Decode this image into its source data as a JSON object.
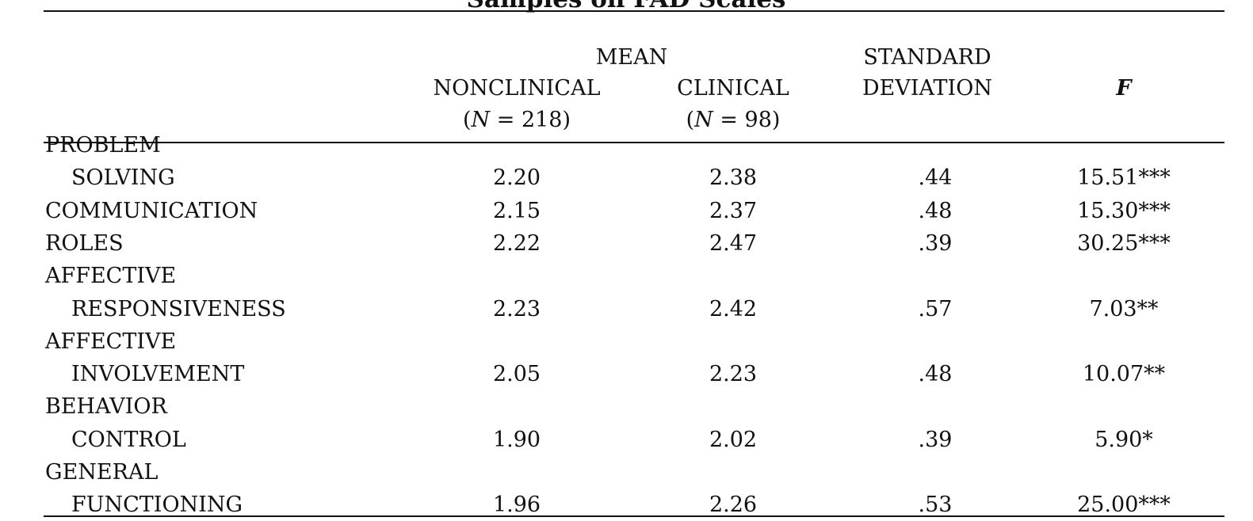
{
  "table": {
    "title": "Samples on FAD Scales",
    "header": {
      "mean_group": "MEAN",
      "nonclinical": "NONCLINICAL",
      "nonclinical_n": "(N = 218)",
      "clinical": "CLINICAL",
      "clinical_n": "(N = 98)",
      "sd_line1": "STANDARD",
      "sd_line2": "DEVIATION",
      "f": "F"
    },
    "rows": [
      {
        "label1": "PROBLEM",
        "label2": "SOLVING",
        "nonclinical": "2.20",
        "clinical": "2.38",
        "sd": ".44",
        "f": "15.51***"
      },
      {
        "label1": "COMMUNICATION",
        "label2": "",
        "nonclinical": "2.15",
        "clinical": "2.37",
        "sd": ".48",
        "f": "15.30***"
      },
      {
        "label1": "ROLES",
        "label2": "",
        "nonclinical": "2.22",
        "clinical": "2.47",
        "sd": ".39",
        "f": "30.25***"
      },
      {
        "label1": "AFFECTIVE",
        "label2": "RESPONSIVENESS",
        "nonclinical": "2.23",
        "clinical": "2.42",
        "sd": ".57",
        "f": "7.03**"
      },
      {
        "label1": "AFFECTIVE",
        "label2": "INVOLVEMENT",
        "nonclinical": "2.05",
        "clinical": "2.23",
        "sd": ".48",
        "f": "10.07**"
      },
      {
        "label1": "BEHAVIOR",
        "label2": "CONTROL",
        "nonclinical": "1.90",
        "clinical": "2.02",
        "sd": ".39",
        "f": "5.90*"
      },
      {
        "label1": "GENERAL",
        "label2": "FUNCTIONING",
        "nonclinical": "1.96",
        "clinical": "2.26",
        "sd": ".53",
        "f": "25.00***"
      }
    ]
  }
}
